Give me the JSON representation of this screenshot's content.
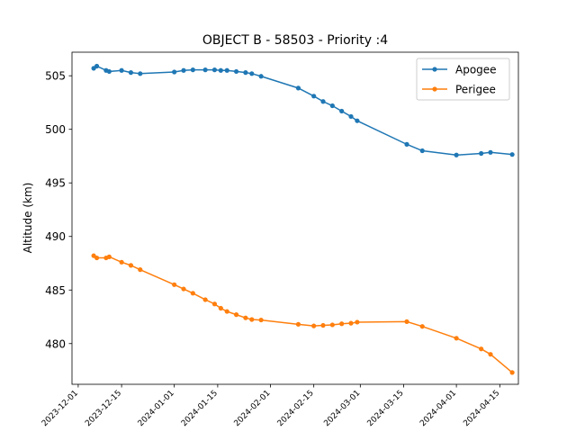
{
  "chart_data": {
    "type": "line",
    "title": "OBJECT B - 58503 - Priority :4",
    "xlabel": "",
    "ylabel": "Altitude (km)",
    "x_type": "date",
    "xlim": [
      "2023-11-29",
      "2024-04-21"
    ],
    "ylim": [
      476.2,
      507.2
    ],
    "x_ticks": [
      "2023-12-01",
      "2023-12-15",
      "2024-01-01",
      "2024-01-15",
      "2024-02-01",
      "2024-02-15",
      "2024-03-01",
      "2024-03-15",
      "2024-04-01",
      "2024-04-15"
    ],
    "y_ticks": [
      480,
      485,
      490,
      495,
      500,
      505
    ],
    "grid": false,
    "legend": {
      "position": "top-right"
    },
    "series": [
      {
        "name": "Apogee",
        "color": "#1f77b4",
        "marker": "circle",
        "x": [
          "2023-12-06",
          "2023-12-07",
          "2023-12-10",
          "2023-12-11",
          "2023-12-15",
          "2023-12-18",
          "2023-12-21",
          "2024-01-01",
          "2024-01-04",
          "2024-01-07",
          "2024-01-11",
          "2024-01-14",
          "2024-01-16",
          "2024-01-18",
          "2024-01-21",
          "2024-01-24",
          "2024-01-26",
          "2024-01-29",
          "2024-02-10",
          "2024-02-15",
          "2024-02-18",
          "2024-02-21",
          "2024-02-24",
          "2024-02-27",
          "2024-02-29",
          "2024-03-16",
          "2024-03-21",
          "2024-04-01",
          "2024-04-09",
          "2024-04-12",
          "2024-04-19"
        ],
        "values": [
          505.7,
          505.9,
          505.5,
          505.4,
          505.5,
          505.3,
          505.2,
          505.35,
          505.5,
          505.55,
          505.55,
          505.55,
          505.5,
          505.5,
          505.4,
          505.3,
          505.2,
          504.95,
          503.85,
          503.1,
          502.6,
          502.2,
          501.7,
          501.2,
          500.8,
          498.6,
          498.0,
          497.6,
          497.75,
          497.85,
          497.65
        ]
      },
      {
        "name": "Perigee",
        "color": "#ff7f0e",
        "marker": "circle",
        "x": [
          "2023-12-06",
          "2023-12-07",
          "2023-12-10",
          "2023-12-11",
          "2023-12-15",
          "2023-12-18",
          "2023-12-21",
          "2024-01-01",
          "2024-01-04",
          "2024-01-07",
          "2024-01-11",
          "2024-01-14",
          "2024-01-16",
          "2024-01-18",
          "2024-01-21",
          "2024-01-24",
          "2024-01-26",
          "2024-01-29",
          "2024-02-10",
          "2024-02-15",
          "2024-02-18",
          "2024-02-21",
          "2024-02-24",
          "2024-02-27",
          "2024-02-29",
          "2024-03-16",
          "2024-03-21",
          "2024-04-01",
          "2024-04-09",
          "2024-04-12",
          "2024-04-19"
        ],
        "values": [
          488.2,
          488.0,
          488.0,
          488.1,
          487.6,
          487.3,
          486.9,
          485.5,
          485.1,
          484.7,
          484.1,
          483.7,
          483.3,
          483.0,
          482.7,
          482.4,
          482.25,
          482.2,
          481.8,
          481.65,
          481.7,
          481.75,
          481.85,
          481.9,
          482.0,
          482.05,
          481.6,
          480.5,
          479.5,
          479.0,
          477.3
        ]
      }
    ]
  }
}
